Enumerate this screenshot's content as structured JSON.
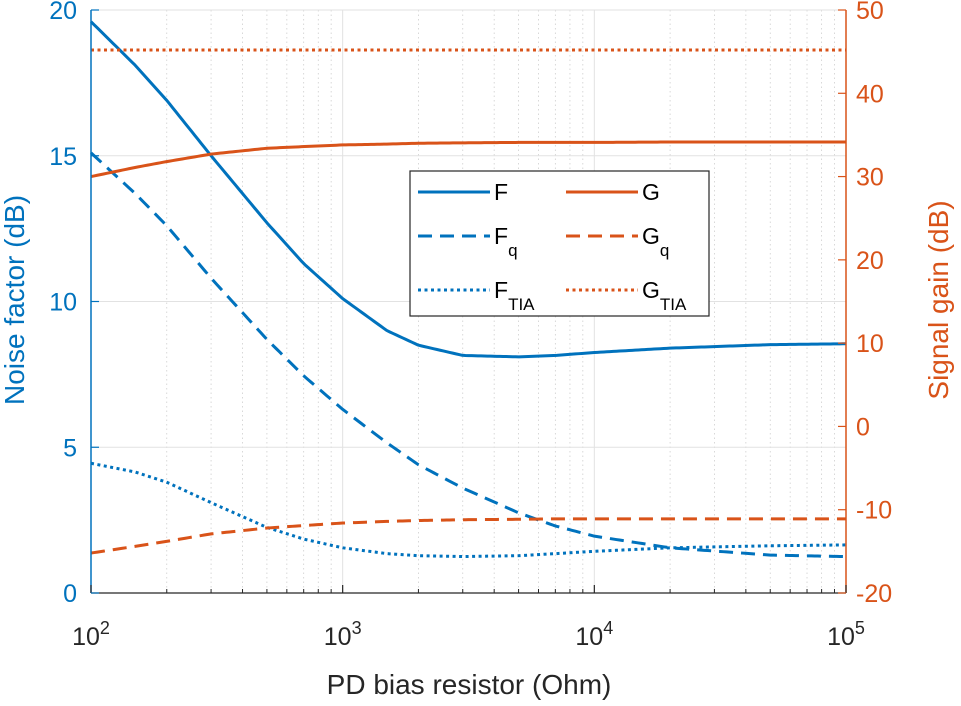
{
  "chart_data": {
    "type": "line",
    "xlabel": "PD bias resistor (Ohm)",
    "ylabel_left": "Noise factor (dB)",
    "ylabel_right": "Signal gain (dB)",
    "x_scale": "log",
    "xlim": [
      100,
      100000
    ],
    "ylim_left": [
      0,
      20
    ],
    "ylim_right": [
      -20,
      50
    ],
    "grid": true,
    "x_ticks": [
      {
        "value": 100,
        "base": "10",
        "exp": "2"
      },
      {
        "value": 1000,
        "base": "10",
        "exp": "3"
      },
      {
        "value": 10000,
        "base": "10",
        "exp": "4"
      },
      {
        "value": 100000,
        "base": "10",
        "exp": "5"
      }
    ],
    "y_left_ticks": [
      {
        "value": 0,
        "label": "0"
      },
      {
        "value": 5,
        "label": "5"
      },
      {
        "value": 10,
        "label": "10"
      },
      {
        "value": 15,
        "label": "15"
      },
      {
        "value": 20,
        "label": "20"
      }
    ],
    "y_right_ticks": [
      {
        "value": -20,
        "label": "-20"
      },
      {
        "value": -10,
        "label": "-10"
      },
      {
        "value": 0,
        "label": "0"
      },
      {
        "value": 10,
        "label": "10"
      },
      {
        "value": 20,
        "label": "20"
      },
      {
        "value": 30,
        "label": "30"
      },
      {
        "value": 40,
        "label": "40"
      },
      {
        "value": 50,
        "label": "50"
      }
    ],
    "legend_location": "center",
    "series": [
      {
        "name": "F",
        "main": "F",
        "sub": "",
        "axis": "left",
        "color": "#0072BD",
        "style": "solid",
        "x": [
          100,
          150,
          200,
          300,
          500,
          700,
          1000,
          1500,
          2000,
          3000,
          5000,
          7000,
          10000,
          20000,
          50000,
          100000
        ],
        "y": [
          19.6,
          18.1,
          16.9,
          15.0,
          12.7,
          11.3,
          10.1,
          9.0,
          8.5,
          8.15,
          8.1,
          8.15,
          8.25,
          8.4,
          8.52,
          8.55
        ]
      },
      {
        "name": "F_q",
        "main": "F",
        "sub": "q",
        "axis": "left",
        "color": "#0072BD",
        "style": "dashed",
        "x": [
          100,
          150,
          200,
          300,
          500,
          700,
          1000,
          1500,
          2000,
          3000,
          5000,
          7000,
          10000,
          20000,
          50000,
          100000
        ],
        "y": [
          15.1,
          13.7,
          12.6,
          10.8,
          8.7,
          7.45,
          6.3,
          5.15,
          4.4,
          3.6,
          2.75,
          2.3,
          1.95,
          1.55,
          1.3,
          1.25
        ]
      },
      {
        "name": "F_TIA",
        "main": "F",
        "sub": "TIA",
        "axis": "left",
        "color": "#0072BD",
        "style": "dotted",
        "x": [
          100,
          150,
          200,
          300,
          500,
          700,
          1000,
          1500,
          2000,
          3000,
          5000,
          7000,
          10000,
          20000,
          50000,
          100000
        ],
        "y": [
          4.45,
          4.15,
          3.8,
          3.1,
          2.25,
          1.85,
          1.55,
          1.35,
          1.28,
          1.25,
          1.28,
          1.35,
          1.43,
          1.55,
          1.62,
          1.65
        ]
      },
      {
        "name": "G",
        "main": "G",
        "sub": "",
        "axis": "right",
        "color": "#D95319",
        "style": "solid",
        "x": [
          100,
          150,
          200,
          300,
          500,
          700,
          1000,
          1500,
          2000,
          3000,
          5000,
          7000,
          10000,
          20000,
          50000,
          100000
        ],
        "y": [
          30.0,
          31.1,
          31.8,
          32.7,
          33.4,
          33.6,
          33.8,
          33.9,
          34.0,
          34.05,
          34.1,
          34.1,
          34.1,
          34.15,
          34.15,
          34.15
        ]
      },
      {
        "name": "G_q",
        "main": "G",
        "sub": "q",
        "axis": "right",
        "color": "#D95319",
        "style": "dashed",
        "x": [
          100,
          150,
          200,
          300,
          500,
          700,
          1000,
          1500,
          2000,
          3000,
          5000,
          7000,
          10000,
          20000,
          50000,
          100000
        ],
        "y": [
          -15.2,
          -14.4,
          -13.8,
          -12.9,
          -12.2,
          -11.9,
          -11.6,
          -11.4,
          -11.3,
          -11.2,
          -11.15,
          -11.1,
          -11.1,
          -11.1,
          -11.1,
          -11.1
        ]
      },
      {
        "name": "G_TIA",
        "main": "G",
        "sub": "TIA",
        "axis": "right",
        "color": "#D95319",
        "style": "dotted",
        "x": [
          100,
          100000
        ],
        "y": [
          45.2,
          45.2
        ]
      }
    ]
  }
}
